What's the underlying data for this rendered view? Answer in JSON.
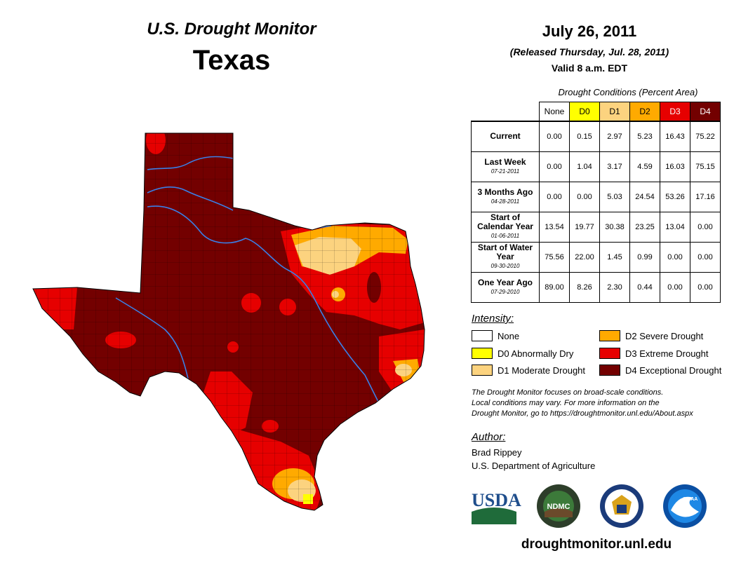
{
  "header": {
    "title": "U.S. Drought Monitor",
    "state": "Texas",
    "date": "July 26, 2011",
    "released": "(Released Thursday, Jul. 28, 2011)",
    "valid": "Valid 8 a.m. EDT"
  },
  "table": {
    "caption": "Drought Conditions (Percent Area)",
    "columns": [
      "None",
      "D0",
      "D1",
      "D2",
      "D3",
      "D4"
    ],
    "column_colors": [
      "#ffffff",
      "#ffff00",
      "#fcd37f",
      "#ffaa00",
      "#e60000",
      "#730000"
    ],
    "rows": [
      {
        "label": "Current",
        "date": "",
        "values": [
          "0.00",
          "0.15",
          "2.97",
          "5.23",
          "16.43",
          "75.22"
        ]
      },
      {
        "label": "Last Week",
        "date": "07-21-2011",
        "values": [
          "0.00",
          "1.04",
          "3.17",
          "4.59",
          "16.03",
          "75.15"
        ]
      },
      {
        "label": "3 Months Ago",
        "date": "04-28-2011",
        "values": [
          "0.00",
          "0.00",
          "5.03",
          "24.54",
          "53.26",
          "17.16"
        ]
      },
      {
        "label": "Start of Calendar Year",
        "date": "01-06-2011",
        "values": [
          "13.54",
          "19.77",
          "30.38",
          "23.25",
          "13.04",
          "0.00"
        ]
      },
      {
        "label": "Start of Water Year",
        "date": "09-30-2010",
        "values": [
          "75.56",
          "22.00",
          "1.45",
          "0.99",
          "0.00",
          "0.00"
        ]
      },
      {
        "label": "One Year Ago",
        "date": "07-29-2010",
        "values": [
          "89.00",
          "8.26",
          "2.30",
          "0.44",
          "0.00",
          "0.00"
        ]
      }
    ]
  },
  "legend": {
    "title": "Intensity:",
    "items": [
      {
        "label": "None",
        "color": "#ffffff"
      },
      {
        "label": "D0 Abnormally Dry",
        "color": "#ffff00"
      },
      {
        "label": "D1 Moderate Drought",
        "color": "#fcd37f"
      },
      {
        "label": "D2 Severe Drought",
        "color": "#ffaa00"
      },
      {
        "label": "D3 Extreme Drought",
        "color": "#e60000"
      },
      {
        "label": "D4 Exceptional Drought",
        "color": "#730000"
      }
    ]
  },
  "note": {
    "line1": "The Drought Monitor focuses on broad-scale conditions.",
    "line2": "Local conditions may vary. For more information on the",
    "line3": "Drought Monitor, go to https://droughtmonitor.unl.edu/About.aspx"
  },
  "author": {
    "label": "Author:",
    "name": "Brad Rippey",
    "org": "U.S. Department of Agriculture"
  },
  "logos": {
    "usda": "USDA",
    "ndmc": "NDMC",
    "noaa": "NOAA"
  },
  "url": "droughtmonitor.unl.edu"
}
